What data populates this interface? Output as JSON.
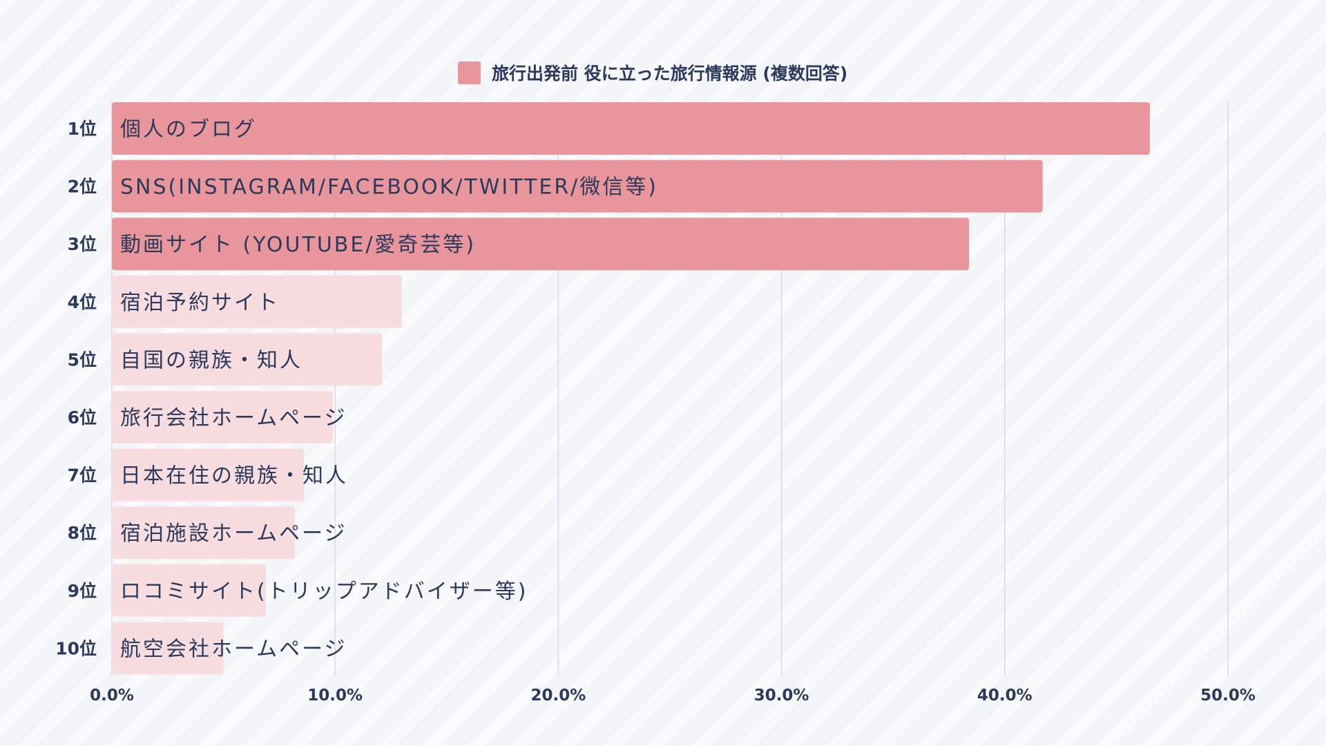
{
  "chart_data": {
    "type": "bar",
    "orientation": "horizontal",
    "legend": {
      "label": "旅行出発前 役に立った旅行情報源 (複数回答)",
      "placement": "top-center",
      "color": "#e8959b"
    },
    "ranks": [
      "1位",
      "2位",
      "3位",
      "4位",
      "5位",
      "6位",
      "7位",
      "8位",
      "9位",
      "10位"
    ],
    "categories": [
      "個人のブログ",
      "SNS(INSTAGRAM/FACEBOOK/TWITTER/微信等)",
      "動画サイト (YOUTUBE/愛奇芸等)",
      "宿泊予約サイト",
      "自国の親族・知人",
      "旅行会社ホームページ",
      "日本在住の親族・知人",
      "宿泊施設ホームページ",
      "ロコミサイト(トリップアドバイザー等)",
      "航空会社ホームページ"
    ],
    "values": [
      46.5,
      41.7,
      38.4,
      13.0,
      12.1,
      9.9,
      8.6,
      8.2,
      6.9,
      5.0
    ],
    "highlight_count": 3,
    "colors": {
      "highlight": "#e8959b",
      "muted": "#f8dde0"
    },
    "xlim": [
      0,
      50
    ],
    "xticks": [
      "0.0%",
      "10.0%",
      "20.0%",
      "30.0%",
      "40.0%",
      "50.0%"
    ],
    "grid": true
  }
}
